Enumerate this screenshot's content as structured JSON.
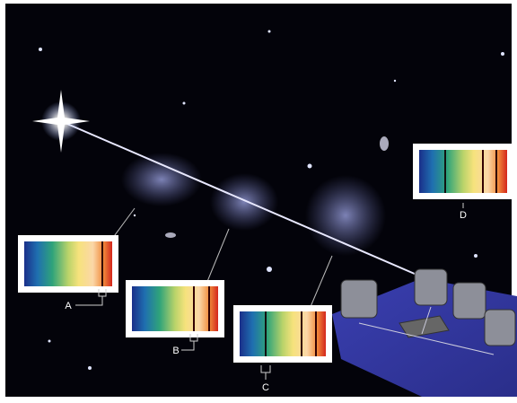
{
  "spectra": [
    {
      "label": "A"
    },
    {
      "label": "B"
    },
    {
      "label": "C"
    },
    {
      "label": "D"
    }
  ]
}
